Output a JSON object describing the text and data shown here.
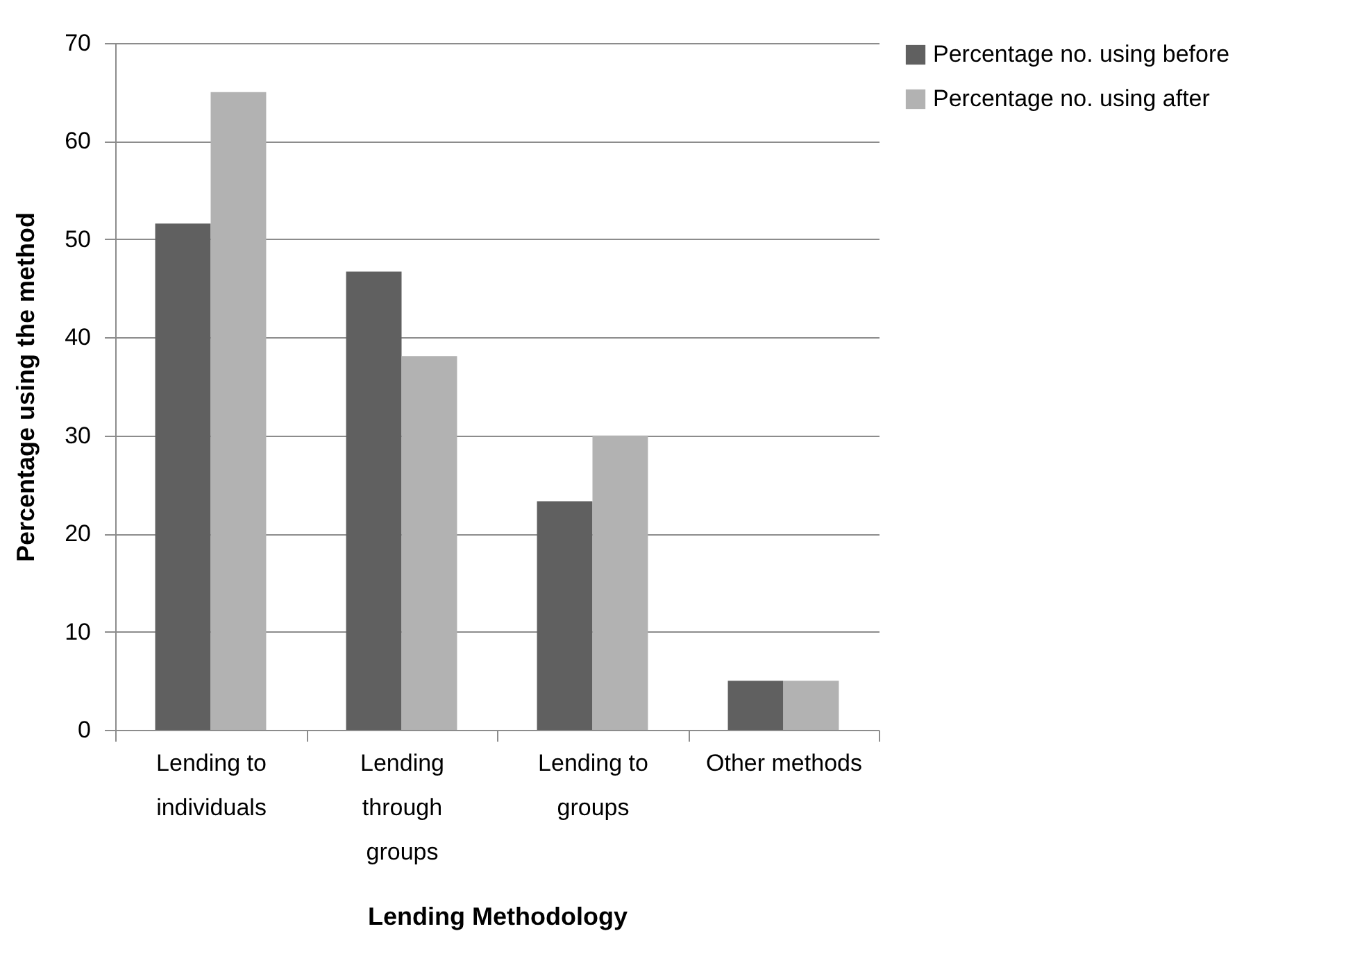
{
  "chart_data": {
    "type": "bar",
    "xlabel": "Lending Methodology",
    "ylabel": "Percentage using  the method",
    "categories": [
      "Lending to individuals",
      "Lending through groups",
      "Lending to groups",
      "Other methods"
    ],
    "series": [
      {
        "name": "Percentage no. using before",
        "color": "#606060",
        "values": [
          51.6,
          46.7,
          23.3,
          5
        ]
      },
      {
        "name": "Percentage no. using after",
        "color": "#b2b2b2",
        "values": [
          65,
          38.1,
          30,
          5
        ]
      }
    ],
    "ylim": [
      0,
      70
    ],
    "yticks": [
      0,
      10,
      20,
      30,
      40,
      50,
      60,
      70
    ],
    "grid": "y",
    "legend": "right"
  }
}
